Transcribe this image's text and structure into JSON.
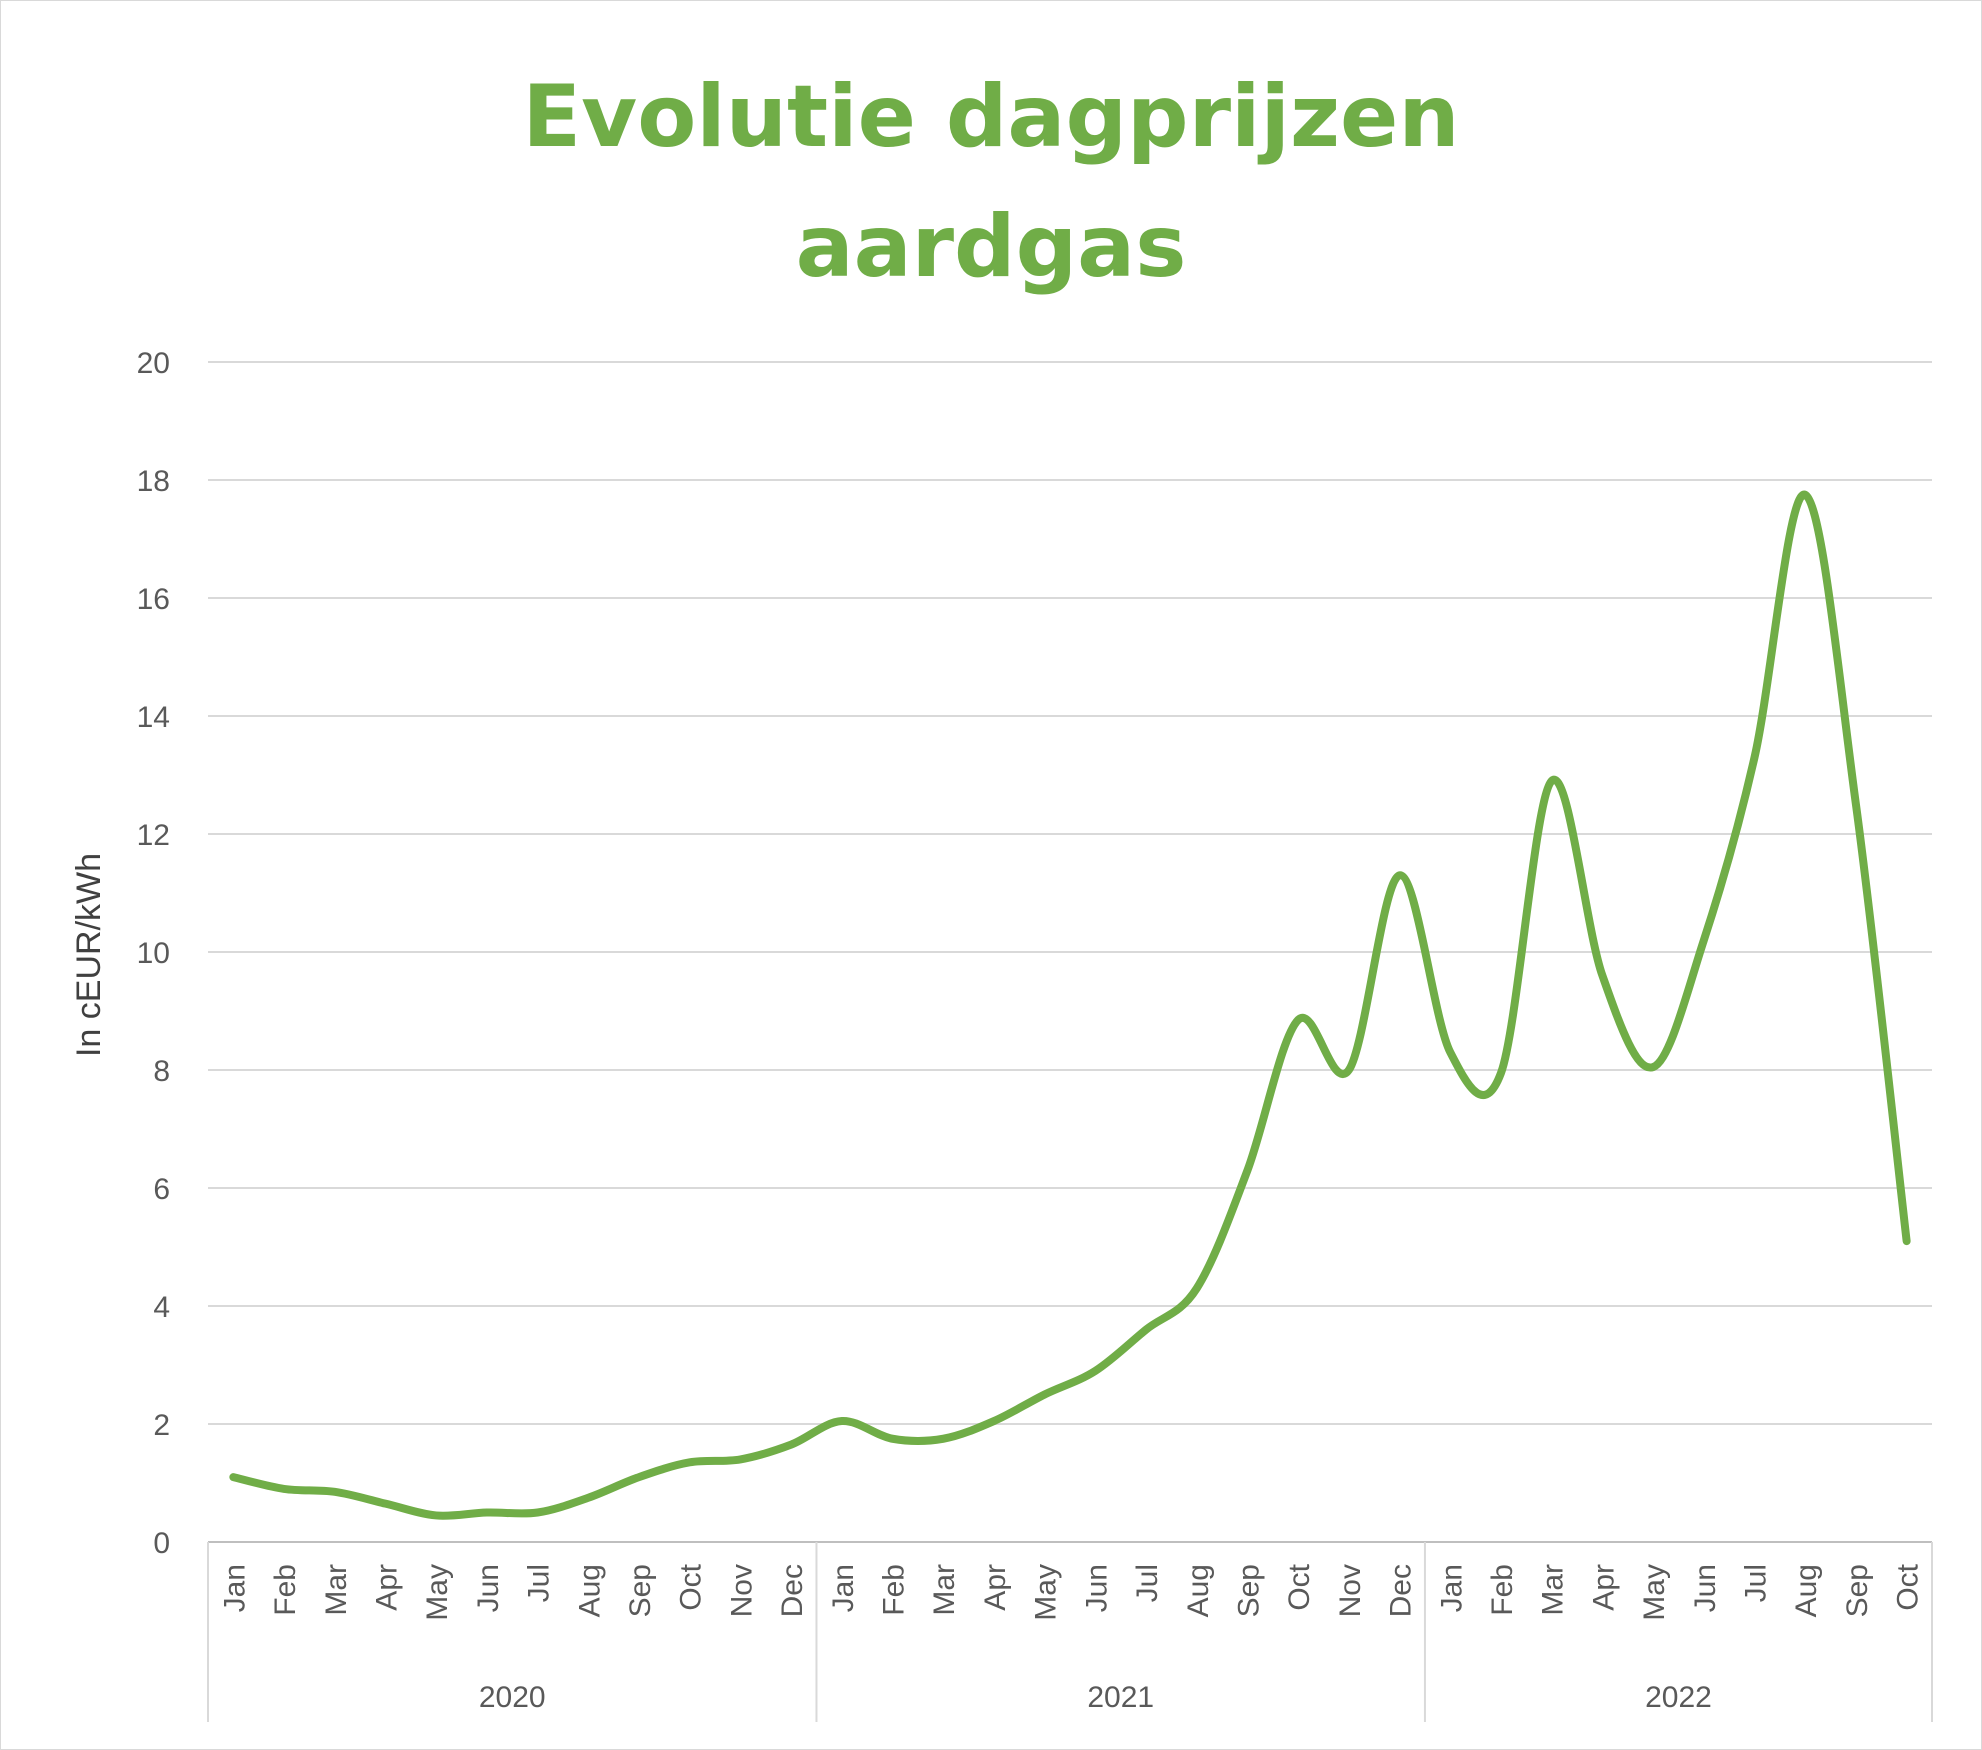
{
  "title_lines": [
    "Evolutie dagprijzen",
    "aardgas"
  ],
  "chart_data": {
    "type": "line",
    "title": "Evolutie dagprijzen aardgas",
    "ylabel": "In cEUR/kWh",
    "xlabel": "",
    "ylim": [
      0,
      20
    ],
    "yticks": [
      0,
      2,
      4,
      6,
      8,
      10,
      12,
      14,
      16,
      18,
      20
    ],
    "grid": true,
    "line_color": "#70ad47",
    "years": [
      {
        "label": "2020",
        "months": [
          "Jan",
          "Feb",
          "Mar",
          "Apr",
          "May",
          "Jun",
          "Jul",
          "Aug",
          "Sep",
          "Oct",
          "Nov",
          "Dec"
        ]
      },
      {
        "label": "2021",
        "months": [
          "Jan",
          "Feb",
          "Mar",
          "Apr",
          "May",
          "Jun",
          "Jul",
          "Aug",
          "Sep",
          "Oct",
          "Nov",
          "Dec"
        ]
      },
      {
        "label": "2022",
        "months": [
          "Jan",
          "Feb",
          "Mar",
          "Apr",
          "May",
          "Jun",
          "Jul",
          "Aug",
          "Sep",
          "Oct"
        ]
      }
    ],
    "values": [
      1.1,
      0.9,
      0.85,
      0.65,
      0.45,
      0.5,
      0.5,
      0.75,
      1.1,
      1.35,
      1.4,
      1.65,
      2.05,
      1.75,
      1.75,
      2.05,
      2.5,
      2.9,
      3.6,
      4.3,
      6.3,
      8.85,
      8.0,
      11.3,
      8.3,
      7.95,
      12.9,
      9.6,
      8.05,
      10.2,
      13.3,
      17.75,
      12.5,
      5.1
    ]
  }
}
